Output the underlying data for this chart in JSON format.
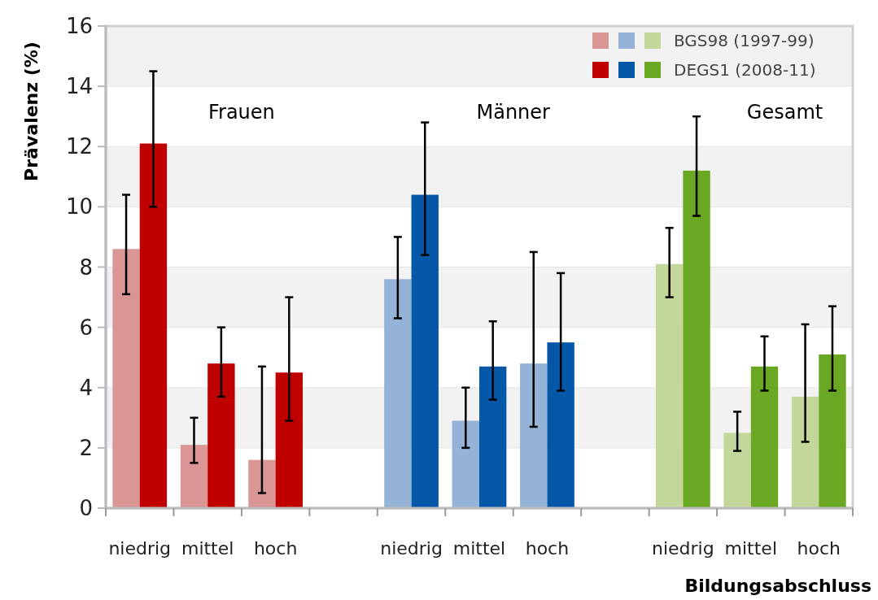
{
  "chart_data": {
    "type": "bar",
    "ylabel": "Prävalenz (%)",
    "xlabel": "Bildungsabschluss",
    "categories": [
      "niedrig",
      "mittel",
      "hoch",
      null,
      "niedrig",
      "mittel",
      "hoch",
      null,
      "niedrig",
      "mittel",
      "hoch"
    ],
    "series": [
      {
        "name": "BGS98 (1997-99)",
        "colors": [
          "#d99694",
          "#d99694",
          "#d99694",
          null,
          "#95b3d7",
          "#95b3d7",
          "#95b3d7",
          null,
          "#c4d79b",
          "#c4d79b",
          "#c4d79b"
        ],
        "values": [
          8.6,
          2.1,
          1.6,
          null,
          7.6,
          2.9,
          4.8,
          null,
          8.1,
          2.5,
          3.7
        ],
        "errors": [
          [
            7.1,
            10.4
          ],
          [
            1.5,
            3.0
          ],
          [
            0.5,
            4.7
          ],
          null,
          [
            6.3,
            9.0
          ],
          [
            2.0,
            4.0
          ],
          [
            2.7,
            8.5
          ],
          null,
          [
            7.0,
            9.3
          ],
          [
            1.9,
            3.2
          ],
          [
            2.2,
            6.1
          ]
        ]
      },
      {
        "name": "DEGS1 (2008-11)",
        "colors": [
          "#c00000",
          "#c00000",
          "#c00000",
          null,
          "#0558a8",
          "#0558a8",
          "#0558a8",
          null,
          "#6aa823",
          "#6aa823",
          "#6aa823"
        ],
        "values": [
          12.1,
          4.8,
          4.5,
          null,
          10.4,
          4.7,
          5.5,
          null,
          11.2,
          4.7,
          5.1
        ],
        "errors": [
          [
            10.0,
            14.5
          ],
          [
            3.7,
            6.0
          ],
          [
            2.9,
            7.0
          ],
          null,
          [
            8.4,
            12.8
          ],
          [
            3.6,
            6.2
          ],
          [
            3.9,
            7.8
          ],
          null,
          [
            9.7,
            13.0
          ],
          [
            3.9,
            5.7
          ],
          [
            3.9,
            6.7
          ]
        ]
      }
    ],
    "ylim": [
      0,
      16
    ],
    "yticks": [
      0,
      2,
      4,
      6,
      8,
      10,
      12,
      14,
      16
    ],
    "grid": "y",
    "legend": "top right",
    "annotations": [
      "Frauen",
      "Männer",
      "Gesamt"
    ]
  }
}
